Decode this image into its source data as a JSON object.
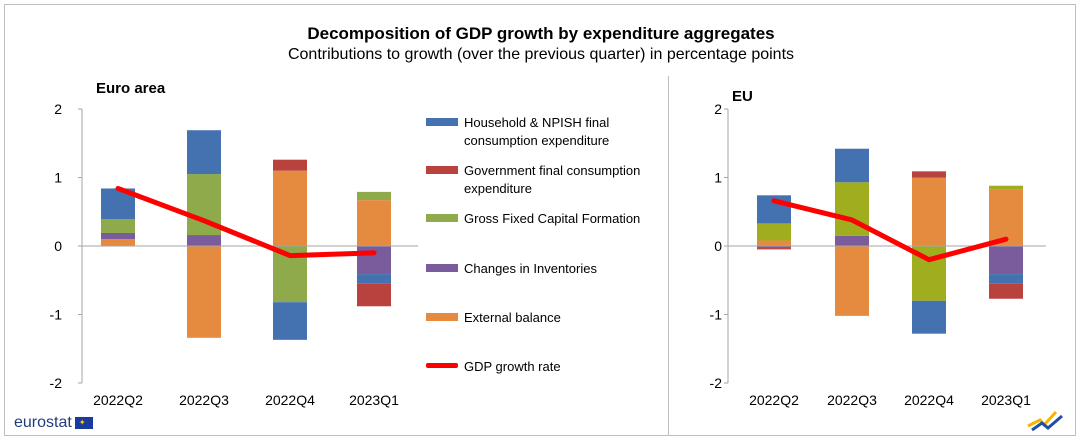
{
  "title": "Decomposition of GDP growth by expenditure aggregates",
  "subtitle": "Contributions to growth (over the previous quarter) in percentage points",
  "logo_text": "eurostat",
  "colors": {
    "household": "#4472b0",
    "government": "#b9413e",
    "gfcf": "#8faa4a",
    "gfcf_eu": "#a0ad1e",
    "inventories": "#7a5b9b",
    "external": "#e58b3f",
    "gdp_line": "#ff0000",
    "axis": "#a6a6a6"
  },
  "legend": [
    {
      "key": "household",
      "label": "Household & NPISH final consumption expenditure"
    },
    {
      "key": "government",
      "label": "Government final consumption expenditure"
    },
    {
      "key": "gfcf",
      "label": "Gross Fixed Capital Formation"
    },
    {
      "key": "inventories",
      "label": "Changes in Inventories"
    },
    {
      "key": "external",
      "label": "External balance"
    },
    {
      "key": "gdp_line",
      "label": "GDP growth rate"
    }
  ],
  "chart_data": [
    {
      "type": "bar",
      "stacked": true,
      "panel_label": "Euro area",
      "categories": [
        "2022Q2",
        "2022Q3",
        "2022Q4",
        "2023Q1"
      ],
      "ylim": [
        -2,
        2
      ],
      "yticks": [
        "2",
        "1",
        "0",
        "-1",
        "-2"
      ],
      "series": [
        {
          "name": "External balance",
          "key": "external",
          "values": [
            0.1,
            -1.34,
            1.1,
            0.67
          ]
        },
        {
          "name": "Changes in Inventories",
          "key": "inventories",
          "values": [
            0.09,
            0.16,
            0.0,
            -0.41
          ]
        },
        {
          "name": "Gross Fixed Capital Formation",
          "key": "gfcf",
          "values": [
            0.2,
            0.89,
            -0.82,
            0.12
          ]
        },
        {
          "name": "Household & NPISH final consumption expenditure",
          "key": "household",
          "values": [
            0.45,
            0.64,
            -0.55,
            -0.14
          ]
        },
        {
          "name": "Government final consumption expenditure",
          "key": "government",
          "values": [
            0.0,
            0.0,
            0.16,
            -0.33
          ]
        }
      ],
      "line": {
        "name": "GDP growth rate",
        "values": [
          0.84,
          0.37,
          -0.14,
          -0.1
        ]
      }
    },
    {
      "type": "bar",
      "stacked": true,
      "panel_label": "EU",
      "categories": [
        "2022Q2",
        "2022Q3",
        "2022Q4",
        "2023Q1"
      ],
      "ylim": [
        -2,
        2
      ],
      "yticks": [
        "2",
        "1",
        "0",
        "-1",
        "-2"
      ],
      "series": [
        {
          "name": "External balance",
          "key": "external",
          "values": [
            0.08,
            -1.02,
            1.0,
            0.82
          ]
        },
        {
          "name": "Changes in Inventories",
          "key": "inventories",
          "values": [
            -0.03,
            0.15,
            0.0,
            -0.41
          ]
        },
        {
          "name": "Gross Fixed Capital Formation",
          "key": "gfcf_eu",
          "values": [
            0.25,
            0.78,
            -0.8,
            0.06
          ]
        },
        {
          "name": "Household & NPISH final consumption expenditure",
          "key": "household",
          "values": [
            0.41,
            0.49,
            -0.48,
            -0.14
          ]
        },
        {
          "name": "Government final consumption expenditure",
          "key": "government",
          "values": [
            -0.02,
            0.0,
            0.09,
            -0.22
          ]
        }
      ],
      "line": {
        "name": "GDP growth rate",
        "values": [
          0.66,
          0.38,
          -0.2,
          0.1
        ]
      }
    }
  ]
}
